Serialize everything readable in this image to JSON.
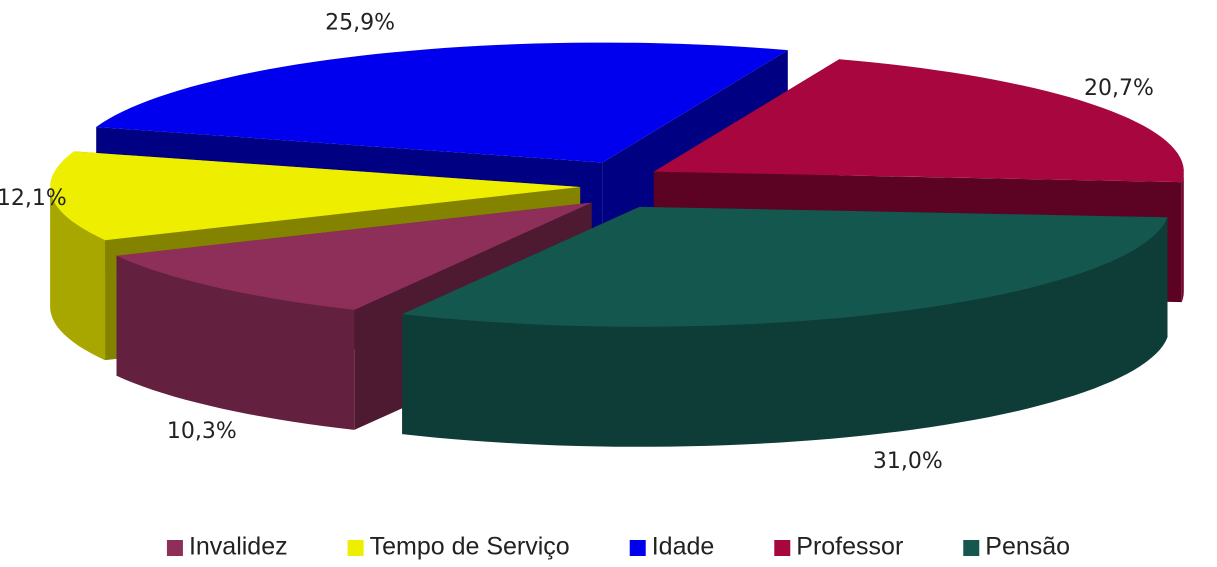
{
  "chart_data": {
    "type": "pie3d",
    "categories": [
      "Invalidez",
      "Tempo de Serviço",
      "Idade",
      "Professor",
      "Pensão"
    ],
    "values": [
      10.3,
      12.1,
      25.9,
      20.7,
      31.0
    ],
    "value_labels": [
      "10,3%",
      "12,1%",
      "25,9%",
      "20,7%",
      "31,0%"
    ],
    "colors": [
      "#8e2f5a",
      "#eeee00",
      "#0000ee",
      "#a8063f",
      "#14574f"
    ],
    "legend": "bottom"
  }
}
